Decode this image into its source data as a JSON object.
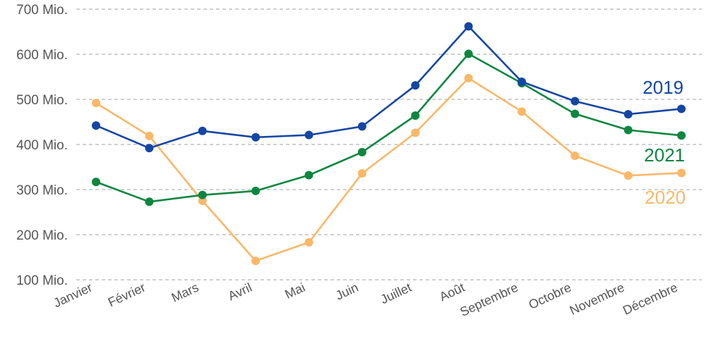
{
  "chart_data": {
    "type": "line",
    "categories": [
      "Janvier",
      "Février",
      "Mars",
      "Avril",
      "Mai",
      "Juin",
      "Juillet",
      "Août",
      "Septembre",
      "Octobre",
      "Novembre",
      "Décembre"
    ],
    "y_tick_labels": [
      "100 Mio.",
      "200 Mio.",
      "300 Mio.",
      "400 Mio.",
      "500 Mio.",
      "600 Mio.",
      "700 Mio."
    ],
    "y_ticks": [
      100,
      200,
      300,
      400,
      500,
      600,
      700
    ],
    "ylim": [
      100,
      700
    ],
    "grid": true,
    "series": [
      {
        "name": "2020",
        "color": "#F9B868",
        "values": [
          492,
          419,
          275,
          142,
          183,
          336,
          426,
          547,
          473,
          375,
          331,
          337
        ]
      },
      {
        "name": "2021",
        "color": "#0E8640",
        "values": [
          317,
          273,
          288,
          297,
          332,
          383,
          464,
          601,
          536,
          468,
          432,
          420
        ]
      },
      {
        "name": "2019",
        "color": "#1546A3",
        "values": [
          442,
          392,
          430,
          416,
          421,
          440,
          531,
          662,
          539,
          496,
          467,
          479
        ]
      }
    ]
  }
}
